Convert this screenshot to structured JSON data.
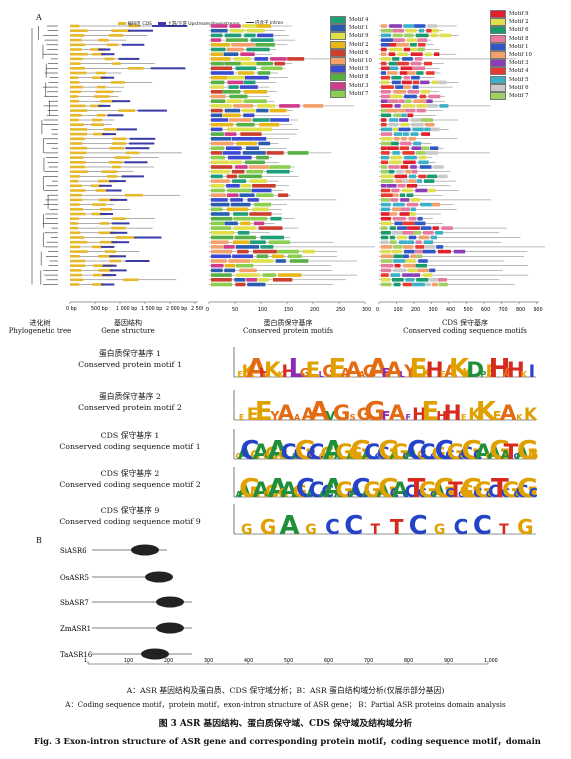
{
  "panel_a_label": "A",
  "panel_b_label": "B",
  "gene_legend": {
    "cds": "CDS",
    "utr": "上游/下游\nUpstream/downstream",
    "intron": "内含子\nIntron",
    "cds_cn": "编码区"
  },
  "gene_axis_ticks": [
    "0 bp",
    "500 bp",
    "1 000 bp",
    "1 500 bp",
    "2 000 bp",
    "2 500 bp"
  ],
  "protein_axis_ticks": [
    "0",
    "50",
    "100",
    "150",
    "200",
    "250",
    "300"
  ],
  "cds_axis_ticks": [
    "0",
    "100",
    "200",
    "300",
    "400",
    "500",
    "600",
    "700",
    "800",
    "900"
  ],
  "protein_motif_legend": [
    "Motif 4",
    "Motif 1",
    "Motif 9",
    "Motif 2",
    "Motif 6",
    "Motif 10",
    "Motif 5",
    "Motif 8",
    "Motif 3",
    "Motif 7"
  ],
  "protein_motif_colors": [
    "#1f9f78",
    "#2a5db0",
    "#e0e04a",
    "#e8b81a",
    "#cc3f2e",
    "#f4a06a",
    "#3b4bd1",
    "#57b043",
    "#d33a8c",
    "#8cce4e"
  ],
  "cds_motif_legend": [
    "Motif 9",
    "Motif 2",
    "Motif 6",
    "Motif 8",
    "Motif 1",
    "Motif 10",
    "Motif 3",
    "Motif 4",
    "Motif 5",
    "Motif 6",
    "Motif 7"
  ],
  "cds_motif_colors": [
    "#e0202a",
    "#e0e04a",
    "#1a9b6e",
    "#e87aa0",
    "#2f58c6",
    "#f4a06a",
    "#8a3fb8",
    "#e83a2e",
    "#3bb0c9",
    "#c9c9c9",
    "#9fd060"
  ],
  "panel_a_captions": [
    {
      "cn": "进化树",
      "en": "Phylogenetic tree"
    },
    {
      "cn": "基因结构",
      "en": "Gene structure"
    },
    {
      "cn": "蛋白质保守基序",
      "en": "Conserved protein motifs"
    },
    {
      "cn": "CDS 保守基序",
      "en": "Conserved coding sequence motifs"
    }
  ],
  "motif_logos": [
    {
      "cn": "蛋白质保守基序 1",
      "en": "Conserved protein motif 1",
      "seq": "EKAHKKHLGELGEAAAGAFALYEKHEAKKDPEHAHKI"
    },
    {
      "cn": "蛋白质保守基序 2",
      "en": "Conserved protein motif 2",
      "seq": "EEEYAAAAVGSGGFAFHEHHEKKEAKK"
    },
    {
      "cn": "CDS 保守基序 1",
      "en": "Conserved coding sequence motif 1",
      "seq": "GACGAGGAGCACGCCGGAAGAGGACCCGAGCACGCCGCCGCCGCAGAGATCAGG"
    },
    {
      "cn": "CDS 保守基序 2",
      "en": "Conserved coding sequence motif 2",
      "seq": "AAGGAGGAGAAGCACACAAGCACAGGAGCACCTCGCAGCTCGGCGCCTCGCCGC"
    },
    {
      "cn": "CDS 保守基序 9",
      "en": "Conserved coding sequence motif 9",
      "seq": "GGAGCCTTCGCCTG"
    }
  ],
  "domain_genes": [
    "SiASR6",
    "OsASR5",
    "SbASR7",
    "ZmASR1",
    "TaASR16"
  ],
  "domain_axis_ticks": [
    "1",
    "100",
    "200",
    "300",
    "400",
    "500",
    "600",
    "700",
    "800",
    "900",
    "1 000"
  ],
  "caption_cn": "A：ASR 基因结构及蛋白质、CDS 保守域分析；B：ASR 蛋白结构域分析(仅展示部分基因)",
  "caption_en": "A：Coding sequence motif，protein motif，exon-intron structure of ASR gene； B：Partial ASR proteins domain analysis",
  "figure_title_cn": "图 3    ASR 基因结构、蛋白质保守域、CDS 保守域及结构域分析",
  "figure_title_en": "Fig. 3    Exon-intron structure of ASR gene and corresponding protein motif，coding sequence motif，domain"
}
